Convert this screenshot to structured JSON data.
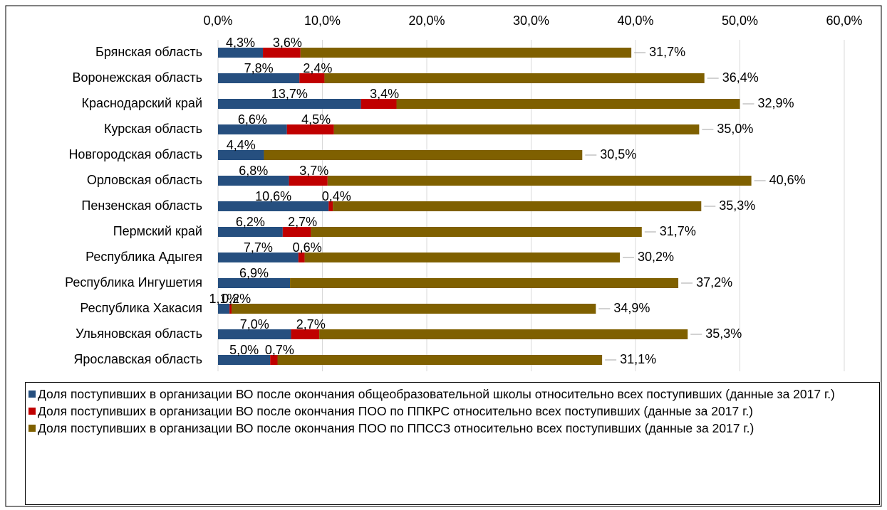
{
  "chart_data": {
    "type": "stacked-barh",
    "categories": [
      "Брянская область",
      "Воронежская область",
      "Краснодарский край",
      "Курская область",
      "Новгородская область",
      "Орловская область",
      "Пензенская область",
      "Пермский край",
      "Республика Адыгея",
      "Республика Ингушетия",
      "Республика Хакасия",
      "Ульяновская область",
      "Ярославская область"
    ],
    "series": [
      {
        "name": "Доля поступивших в организации ВО после окончания общеобразовательной школы относительно всех поступивших (данные за 2017 г.)",
        "color": "#264f7f",
        "values": [
          4.3,
          7.8,
          13.7,
          6.6,
          4.4,
          6.8,
          10.6,
          6.2,
          7.7,
          6.9,
          1.1,
          7.0,
          5.0
        ],
        "value_labels": [
          "4,3%",
          "7,8%",
          "13,7%",
          "6,6%",
          "4,4%",
          "6,8%",
          "10,6%",
          "6,2%",
          "7,7%",
          "6,9%",
          "1,1%",
          "7,0%",
          "5,0%"
        ]
      },
      {
        "name": "Доля поступивших в организации ВО после окончания ПОО по ППКРС относительно всех поступивших (данные за 2017 г.)",
        "color": "#c00000",
        "values": [
          3.6,
          2.4,
          3.4,
          4.5,
          null,
          3.7,
          0.4,
          2.7,
          0.6,
          null,
          0.2,
          2.7,
          0.7
        ],
        "value_labels": [
          "3,6%",
          "2,4%",
          "3,4%",
          "4,5%",
          null,
          "3,7%",
          "0,4%",
          "2,7%",
          "0,6%",
          null,
          "0,2%",
          "2,7%",
          "0,7%"
        ]
      },
      {
        "name": "Доля поступивших в организации ВО после окончания ПОО по ППССЗ относительно всех поступивших (данные за 2017 г.)",
        "color": "#7f6000",
        "values": [
          31.7,
          36.4,
          32.9,
          35.0,
          30.5,
          40.6,
          35.3,
          31.7,
          30.2,
          37.2,
          34.9,
          35.3,
          31.1
        ],
        "value_labels": [
          "31,7%",
          "36,4%",
          "32,9%",
          "35,0%",
          "30,5%",
          "40,6%",
          "35,3%",
          "31,7%",
          "30,2%",
          "37,2%",
          "34,9%",
          "35,3%",
          "31,1%"
        ]
      }
    ],
    "xlim": [
      0,
      60
    ],
    "xticks": [
      {
        "value": 0,
        "label": "0,0%"
      },
      {
        "value": 10,
        "label": "10,0%"
      },
      {
        "value": 20,
        "label": "20,0%"
      },
      {
        "value": 30,
        "label": "30,0%"
      },
      {
        "value": 40,
        "label": "40,0%"
      },
      {
        "value": 50,
        "label": "50,0%"
      },
      {
        "value": 60,
        "label": "60,0%"
      }
    ],
    "grid": true
  }
}
